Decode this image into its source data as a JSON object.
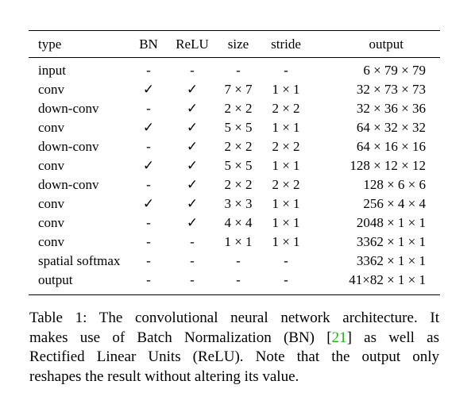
{
  "table": {
    "columns": [
      "type",
      "BN",
      "ReLU",
      "size",
      "stride",
      "output"
    ],
    "rows": [
      [
        "input",
        "-",
        "-",
        "-",
        "-",
        "6 × 79 × 79"
      ],
      [
        "conv",
        "✓",
        "✓",
        "7 × 7",
        "1 × 1",
        "32 × 73 × 73"
      ],
      [
        "down-conv",
        "-",
        "✓",
        "2 × 2",
        "2 × 2",
        "32 × 36 × 36"
      ],
      [
        "conv",
        "✓",
        "✓",
        "5 × 5",
        "1 × 1",
        "64 × 32 × 32"
      ],
      [
        "down-conv",
        "-",
        "✓",
        "2 × 2",
        "2 × 2",
        "64 × 16 × 16"
      ],
      [
        "conv",
        "✓",
        "✓",
        "5 × 5",
        "1 × 1",
        "128 × 12 × 12"
      ],
      [
        "down-conv",
        "-",
        "✓",
        "2 × 2",
        "2 × 2",
        "128 × 6 × 6"
      ],
      [
        "conv",
        "✓",
        "✓",
        "3 × 3",
        "1 × 1",
        "256 × 4 × 4"
      ],
      [
        "conv",
        "-",
        "✓",
        "4 × 4",
        "1 × 1",
        "2048 × 1 × 1"
      ],
      [
        "conv",
        "-",
        "-",
        "1 × 1",
        "1 × 1",
        "3362 × 1 × 1"
      ],
      [
        "spatial softmax",
        "-",
        "-",
        "-",
        "-",
        "3362 × 1 × 1"
      ],
      [
        "output",
        "-",
        "-",
        "-",
        "-",
        "41×82 × 1 × 1"
      ]
    ]
  },
  "caption": {
    "line1": "Table 1: The convolutional neural network architecture. It",
    "line2_pre": "makes use of Batch Normalization (BN) [",
    "line2_ref": "21",
    "line2_post": "] as well as",
    "line3": "Rectified Linear Units (ReLU). Note that the output only",
    "line4": "reshapes the result without altering its value."
  }
}
